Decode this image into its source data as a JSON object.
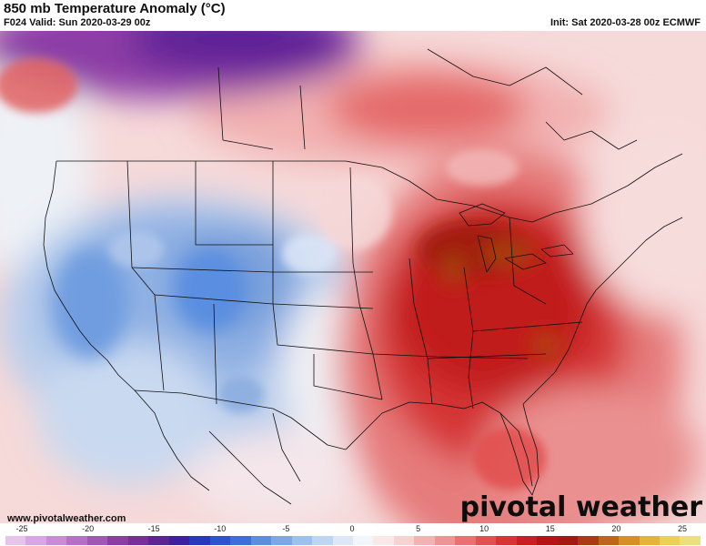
{
  "header": {
    "title": "850 mb Temperature Anomaly (°C)",
    "valid": "F024 Valid: Sun 2020-03-29 00z",
    "init": "Init: Sat 2020-03-28 00z ECMWF"
  },
  "footer": {
    "website": "www.pivotalweather.com",
    "brand": "pivotal weather"
  },
  "colorbar": {
    "ticks": [
      "-25",
      "-20",
      "-15",
      "-10",
      "-5",
      "0",
      "5",
      "10",
      "15",
      "20",
      "25"
    ],
    "colors": [
      "#e6c4ec",
      "#d8a6e2",
      "#c98ad6",
      "#b96ec9",
      "#a455b8",
      "#8d3ca6",
      "#7a2d9a",
      "#5e2496",
      "#3e1f9c",
      "#2738b8",
      "#2c55cc",
      "#3b71d6",
      "#5a8ee0",
      "#7aa8e8",
      "#9cc1ef",
      "#bcd6f4",
      "#dce8f8",
      "#f2f5fa",
      "#fbe9e9",
      "#f8d1d1",
      "#f4b3b3",
      "#ef9393",
      "#e87272",
      "#e05252",
      "#d63535",
      "#c91f1f",
      "#b51414",
      "#a11a10",
      "#a83c10",
      "#c0641a",
      "#d98c2a",
      "#e6b13c",
      "#eccf58",
      "#ede07c"
    ]
  },
  "map": {
    "variable": "850 mb Temperature Anomaly",
    "warm_core": "Great Lakes / Ohio Valley / Mid-Atlantic",
    "cold_core": "Canadian Arctic and Intermountain West"
  }
}
